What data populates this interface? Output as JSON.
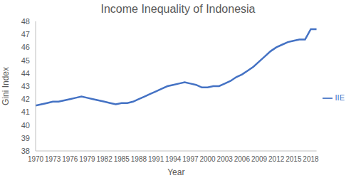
{
  "chart_data": {
    "type": "line",
    "title": "Income Inequality of Indonesia",
    "x_label": "Year",
    "y_label": "Gini Index",
    "categories": [
      "1970",
      null,
      null,
      "1973",
      null,
      null,
      "1976",
      null,
      null,
      "1979",
      null,
      null,
      "1982",
      null,
      null,
      "1985",
      null,
      null,
      "1988",
      null,
      null,
      "1991",
      null,
      null,
      "1994",
      null,
      null,
      "1997",
      null,
      null,
      "2000",
      null,
      null,
      "2003",
      null,
      null,
      "2006",
      null,
      null,
      "2009",
      null,
      null,
      "2012",
      null,
      null,
      "2015",
      null,
      null,
      "2018",
      null
    ],
    "series": [
      {
        "name": "IIE",
        "color": "#4472c4",
        "values": [
          41.5,
          41.6,
          41.7,
          41.8,
          41.8,
          41.9,
          42.0,
          42.1,
          42.2,
          42.1,
          42.0,
          41.9,
          41.8,
          41.7,
          41.6,
          41.7,
          41.7,
          41.8,
          42.0,
          42.2,
          42.4,
          42.6,
          42.8,
          43.0,
          43.1,
          43.2,
          43.3,
          43.2,
          43.1,
          42.9,
          42.9,
          43.0,
          43.0,
          43.2,
          43.4,
          43.7,
          43.9,
          44.2,
          44.5,
          44.9,
          45.3,
          45.7,
          46.0,
          46.2,
          46.4,
          46.5,
          46.6,
          46.6,
          47.4,
          47.4
        ]
      }
    ],
    "ylim": [
      38,
      48
    ],
    "yticks": [
      38,
      39,
      40,
      41,
      42,
      43,
      44,
      45,
      46,
      47,
      48
    ],
    "grid": false,
    "legend": "right"
  }
}
